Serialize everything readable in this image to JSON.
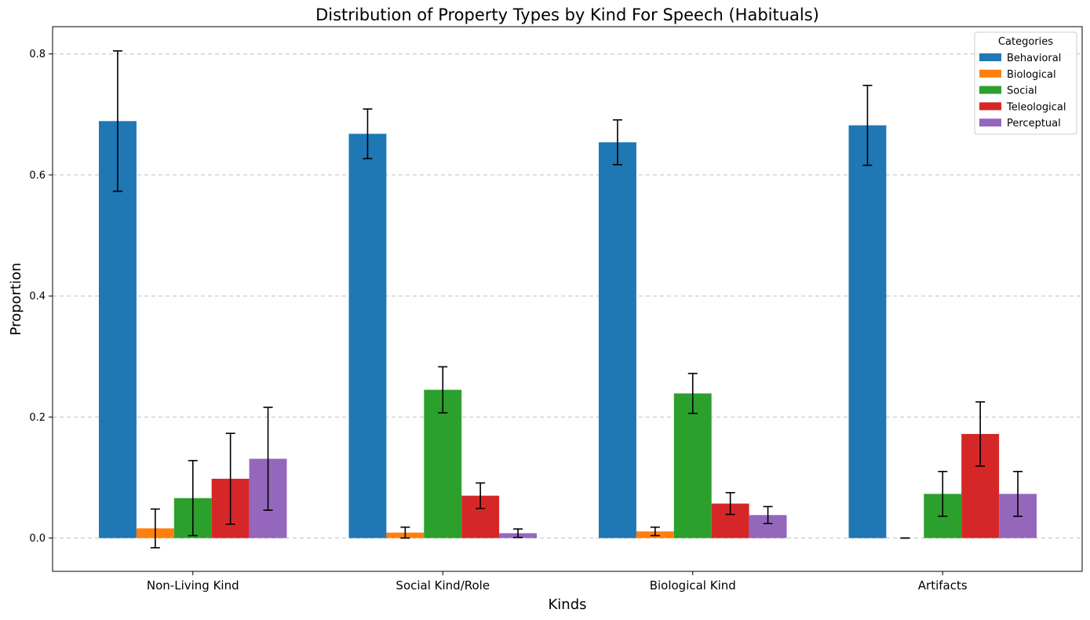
{
  "chart_data": {
    "type": "bar",
    "title": "Distribution of Property Types by Kind For Speech (Habituals)",
    "xlabel": "Kinds",
    "ylabel": "Proportion",
    "ylim": [
      -0.055,
      0.845
    ],
    "yticks": [
      0.0,
      0.2,
      0.4,
      0.6,
      0.8
    ],
    "ytick_labels": [
      "0.0",
      "0.2",
      "0.4",
      "0.6",
      "0.8"
    ],
    "grid": "y-dashed",
    "legend": {
      "title": "Categories",
      "placement": "top-right"
    },
    "categories": [
      "Non-Living Kind",
      "Social Kind/Role",
      "Biological Kind",
      "Artifacts"
    ],
    "series": [
      {
        "name": "Behavioral",
        "color": "#1f77b4",
        "values": [
          0.689,
          0.668,
          0.654,
          0.682
        ],
        "errors": [
          0.116,
          0.041,
          0.037,
          0.066
        ]
      },
      {
        "name": "Biological",
        "color": "#ff7f0e",
        "values": [
          0.016,
          0.009,
          0.011,
          0.0
        ],
        "errors": [
          0.032,
          0.009,
          0.007,
          0.0
        ]
      },
      {
        "name": "Social",
        "color": "#2ca02c",
        "values": [
          0.066,
          0.245,
          0.239,
          0.073
        ],
        "errors": [
          0.062,
          0.038,
          0.033,
          0.037
        ]
      },
      {
        "name": "Teleological",
        "color": "#d62728",
        "values": [
          0.098,
          0.07,
          0.057,
          0.172
        ],
        "errors": [
          0.075,
          0.021,
          0.018,
          0.053
        ]
      },
      {
        "name": "Perceptual",
        "color": "#9467bd",
        "values": [
          0.131,
          0.008,
          0.038,
          0.073
        ],
        "errors": [
          0.085,
          0.007,
          0.014,
          0.037
        ]
      }
    ]
  }
}
